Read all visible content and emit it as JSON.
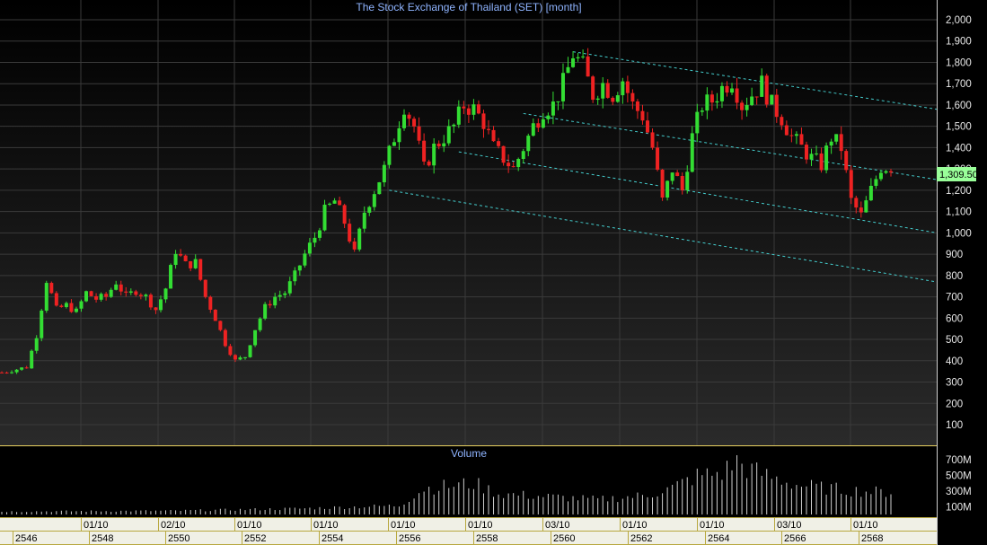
{
  "chart_data": {
    "type": "candlestick",
    "title": "The Stock Exchange of Thailand (SET) [month]",
    "volume_title": "Volume",
    "last_price_label": "1,309.50",
    "y_ticks": [
      "2,000",
      "1,900",
      "1,800",
      "1,700",
      "1,600",
      "1,500",
      "1,400",
      "1,300",
      "1,200",
      "1,100",
      "1,000",
      "900",
      "800",
      "700",
      "600",
      "500",
      "400",
      "300",
      "200",
      "100"
    ],
    "y_tick_values": [
      2000,
      1900,
      1800,
      1700,
      1600,
      1500,
      1400,
      1300,
      1200,
      1100,
      1000,
      900,
      800,
      700,
      600,
      500,
      400,
      300,
      200,
      100
    ],
    "volume_ticks": [
      "700M",
      "500M",
      "300M",
      "100M"
    ],
    "volume_tick_values": [
      700,
      500,
      300,
      100
    ],
    "x_month_labels": [
      "01/10",
      "02/10",
      "01/10",
      "01/10",
      "01/10",
      "01/10",
      "03/10",
      "01/10",
      "01/10",
      "03/10",
      "01/10"
    ],
    "x_year_labels": [
      "2546",
      "2548",
      "2550",
      "2552",
      "2554",
      "2556",
      "2558",
      "2560",
      "2562",
      "2564",
      "2566",
      "2568"
    ],
    "ylim": [
      0,
      2100
    ],
    "up_color": "#33dd33",
    "down_color": "#ee2222",
    "trendline_color": "#44cccc",
    "price_tag_color": "#99ff99",
    "closes_path": [
      [
        0,
        345
      ],
      [
        3,
        360
      ],
      [
        5,
        370
      ],
      [
        7,
        520
      ],
      [
        9,
        780
      ],
      [
        11,
        640
      ],
      [
        13,
        660
      ],
      [
        15,
        630
      ],
      [
        17,
        720
      ],
      [
        19,
        690
      ],
      [
        21,
        700
      ],
      [
        23,
        770
      ],
      [
        25,
        700
      ],
      [
        27,
        730
      ],
      [
        29,
        700
      ],
      [
        31,
        640
      ],
      [
        33,
        740
      ],
      [
        35,
        920
      ],
      [
        37,
        850
      ],
      [
        39,
        860
      ],
      [
        41,
        700
      ],
      [
        43,
        600
      ],
      [
        45,
        480
      ],
      [
        47,
        400
      ],
      [
        49,
        420
      ],
      [
        51,
        550
      ],
      [
        53,
        650
      ],
      [
        55,
        700
      ],
      [
        57,
        720
      ],
      [
        59,
        800
      ],
      [
        61,
        900
      ],
      [
        63,
        980
      ],
      [
        65,
        1100
      ],
      [
        67,
        1150
      ],
      [
        69,
        1050
      ],
      [
        71,
        900
      ],
      [
        73,
        1100
      ],
      [
        75,
        1200
      ],
      [
        77,
        1300
      ],
      [
        79,
        1450
      ],
      [
        81,
        1600
      ],
      [
        83,
        1500
      ],
      [
        85,
        1300
      ],
      [
        87,
        1400
      ],
      [
        89,
        1450
      ],
      [
        91,
        1500
      ],
      [
        93,
        1600
      ],
      [
        95,
        1580
      ],
      [
        97,
        1520
      ],
      [
        99,
        1400
      ],
      [
        101,
        1350
      ],
      [
        103,
        1300
      ],
      [
        105,
        1400
      ],
      [
        107,
        1500
      ],
      [
        109,
        1580
      ],
      [
        111,
        1600
      ],
      [
        113,
        1700
      ],
      [
        115,
        1840
      ],
      [
        117,
        1780
      ],
      [
        119,
        1650
      ],
      [
        121,
        1700
      ],
      [
        123,
        1650
      ],
      [
        125,
        1720
      ],
      [
        127,
        1600
      ],
      [
        129,
        1550
      ],
      [
        131,
        1400
      ],
      [
        133,
        1150
      ],
      [
        135,
        1300
      ],
      [
        137,
        1200
      ],
      [
        139,
        1450
      ],
      [
        141,
        1600
      ],
      [
        143,
        1620
      ],
      [
        145,
        1680
      ],
      [
        147,
        1720
      ],
      [
        149,
        1600
      ],
      [
        151,
        1650
      ],
      [
        153,
        1700
      ],
      [
        155,
        1600
      ],
      [
        157,
        1540
      ],
      [
        159,
        1450
      ],
      [
        161,
        1400
      ],
      [
        163,
        1350
      ],
      [
        165,
        1320
      ],
      [
        167,
        1450
      ],
      [
        169,
        1400
      ],
      [
        171,
        1150
      ],
      [
        173,
        1080
      ],
      [
        175,
        1200
      ],
      [
        177,
        1309.5
      ]
    ],
    "volume_profile": [
      [
        0,
        40
      ],
      [
        35,
        50
      ],
      [
        60,
        80
      ],
      [
        80,
        120
      ],
      [
        85,
        350
      ],
      [
        95,
        420
      ],
      [
        100,
        280
      ],
      [
        110,
        240
      ],
      [
        120,
        200
      ],
      [
        130,
        260
      ],
      [
        135,
        360
      ],
      [
        140,
        520
      ],
      [
        145,
        560
      ],
      [
        148,
        720
      ],
      [
        150,
        620
      ],
      [
        155,
        500
      ],
      [
        160,
        400
      ],
      [
        165,
        360
      ],
      [
        170,
        330
      ],
      [
        177,
        300
      ]
    ],
    "trendlines": [
      {
        "from": [
          115,
          1850
        ],
        "to": [
          180,
          1580
        ]
      },
      {
        "from": [
          105,
          1560
        ],
        "to": [
          180,
          1250
        ]
      },
      {
        "from": [
          92,
          1380
        ],
        "to": [
          180,
          1000
        ]
      },
      {
        "from": [
          78,
          1200
        ],
        "to": [
          180,
          770
        ]
      }
    ]
  }
}
